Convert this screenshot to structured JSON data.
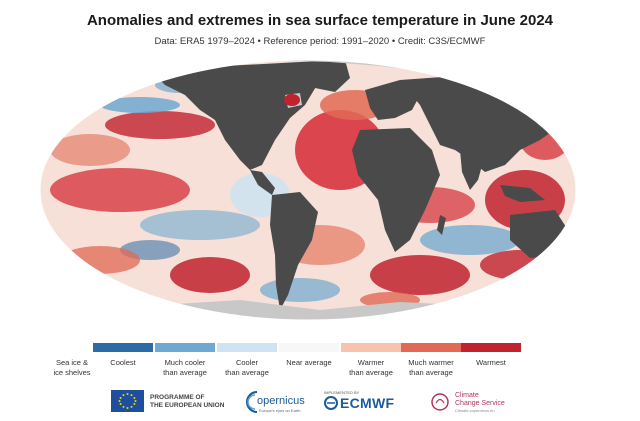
{
  "title": "Anomalies and extremes in sea surface temperature in June 2024",
  "subtitle": "Data: ERA5 1979–2024 • Reference period: 1991–2020 • Credit: C3S/ECMWF",
  "legend": [
    {
      "label": "Sea ice &\nice shelves",
      "color": "#c8c8c8",
      "swatch": false
    },
    {
      "label": "Coolest",
      "color": "#2b6ca6",
      "swatch": true
    },
    {
      "label": "Much cooler\nthan average",
      "color": "#6fa8d0",
      "swatch": true
    },
    {
      "label": "Cooler\nthan average",
      "color": "#cfe3f0",
      "swatch": true
    },
    {
      "label": "Near average",
      "color": "#f7f7f7",
      "swatch": true
    },
    {
      "label": "Warmer\nthan average",
      "color": "#f7c3ad",
      "swatch": true
    },
    {
      "label": "Much warmer\nthan average",
      "color": "#e06a55",
      "swatch": true
    },
    {
      "label": "Warmest",
      "color": "#c0222e",
      "swatch": true
    }
  ],
  "colors": {
    "land": "#4a4a4a",
    "ice": "#c8c8c8",
    "ocean_base": "#f3dcd4"
  },
  "logos": {
    "eu_text": "PROGRAMME OF\nTHE EUROPEAN UNION",
    "copernicus": "opernicus",
    "copernicus_sub": "Europe's eyes on Earth",
    "ecmwf_impl": "IMPLEMENTED BY",
    "ecmwf": "ECMWF",
    "c3s": "Climate\nChange Service",
    "c3s_sub": "Climate.copernicus.eu"
  }
}
